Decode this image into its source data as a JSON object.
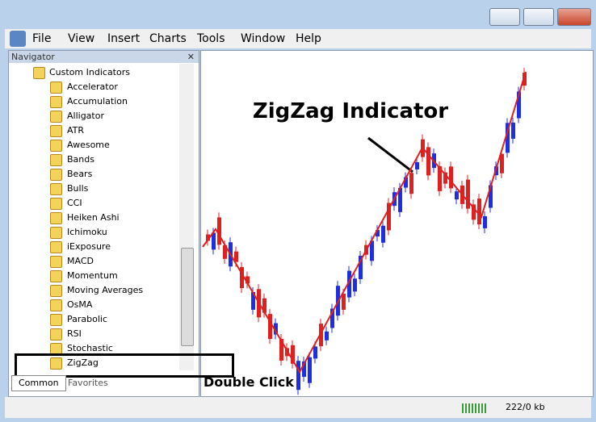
{
  "menu": [
    "File",
    "View",
    "Insert",
    "Charts",
    "Tools",
    "Window",
    "Help"
  ],
  "navigator": {
    "title": "Navigator",
    "folder": "Custom Indicators",
    "items": [
      "Accelerator",
      "Accumulation",
      "Alligator",
      "ATR",
      "Awesome",
      "Bands",
      "Bears",
      "Bulls",
      "CCI",
      "Heiken Ashi",
      "Ichimoku",
      "iExposure",
      "MACD",
      "Momentum",
      "Moving Averages",
      "OsMA",
      "Parabolic",
      "RSI",
      "Stochastic",
      "ZigZag"
    ],
    "tabs": [
      "Common",
      "Favorites"
    ]
  },
  "annotations": {
    "chart": "ZigZag Indicator",
    "action": "Double Click"
  },
  "status": "222/0 kb"
}
